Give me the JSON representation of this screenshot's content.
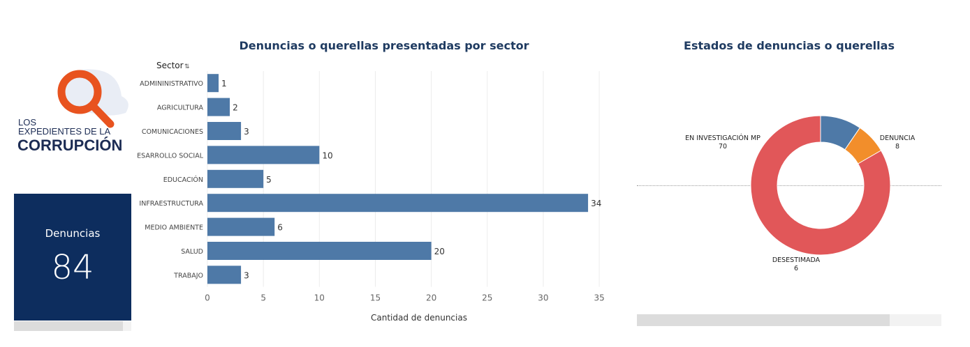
{
  "logo": {
    "line1": "LOS",
    "line2": "EXPEDIENTES DE LA",
    "line3": "CORRUPCIÓN"
  },
  "kpi": {
    "label": "Denuncias",
    "value": "84"
  },
  "chart_data": [
    {
      "type": "bar",
      "orientation": "horizontal",
      "title": "Denuncias o querellas presentadas por sector",
      "ylabel": "Sector",
      "xlabel": "Cantidad de denuncias",
      "categories": [
        "ADMININISTRATIVO",
        "AGRICULTURA",
        "COMUNICACIONES",
        "DESARROLLO SOCIAL",
        "EDUCACIÓN",
        "INFRAESTRUCTURA",
        "MEDIO AMBIENTE",
        "SALUD",
        "TRABAJO"
      ],
      "values": [
        1,
        2,
        3,
        10,
        5,
        34,
        6,
        20,
        3
      ],
      "xlim": [
        0,
        37.8
      ],
      "xticks": [
        0,
        5,
        10,
        15,
        20,
        25,
        30,
        35
      ],
      "grid": true,
      "color": "#4e79a7"
    },
    {
      "type": "pie",
      "donut": true,
      "title": "Estados de denuncias o querellas",
      "slices": [
        {
          "label": "DENUNCIA",
          "value": 8,
          "color": "#4e79a7"
        },
        {
          "label": "DESESTIMADA",
          "value": 6,
          "color": "#f28e2b"
        },
        {
          "label": "EN INVESTIGACIÓN MP",
          "value": 70,
          "color": "#e15759"
        }
      ]
    }
  ]
}
